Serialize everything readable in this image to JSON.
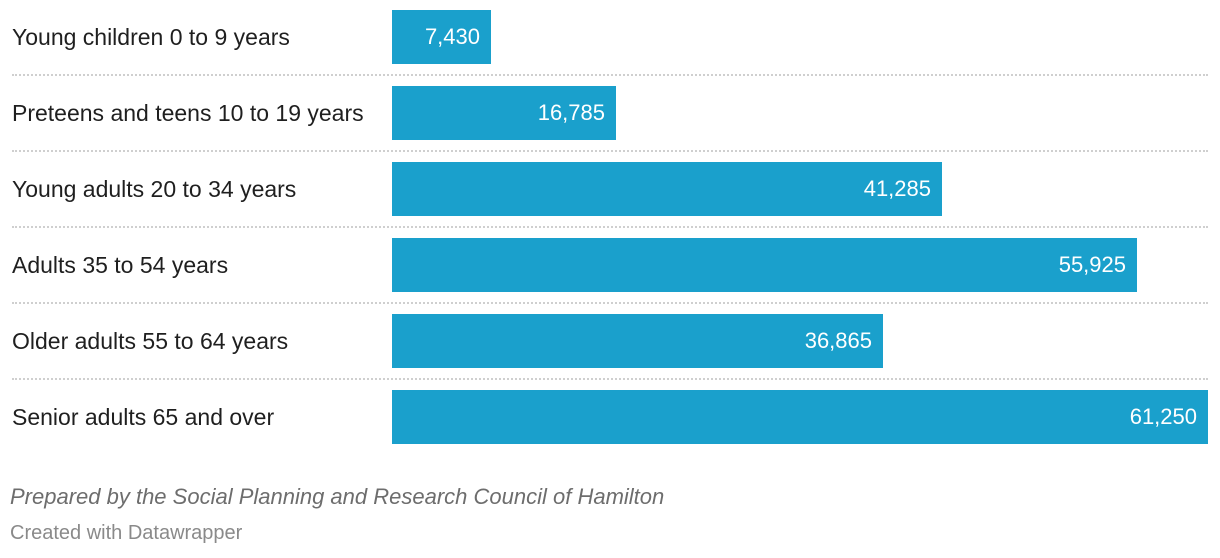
{
  "chart_data": {
    "type": "bar",
    "orientation": "horizontal",
    "categories": [
      "Young children 0 to 9 years",
      "Preteens and teens 10 to 19 years",
      "Young adults 20 to 34 years",
      "Adults 35 to 54 years",
      "Older adults 55 to 64 years",
      "Senior adults 65 and over"
    ],
    "values": [
      7430,
      16785,
      41285,
      55925,
      36865,
      61250
    ],
    "value_labels": [
      "7,430",
      "16,785",
      "41,285",
      "55,925",
      "36,865",
      "61,250"
    ],
    "xlim": [
      0,
      61250
    ],
    "bar_color": "#1aa0cc",
    "grid": false
  },
  "footer": {
    "source": "Prepared by the Social Planning and Research Council of Hamilton",
    "credit": "Created with Datawrapper"
  }
}
